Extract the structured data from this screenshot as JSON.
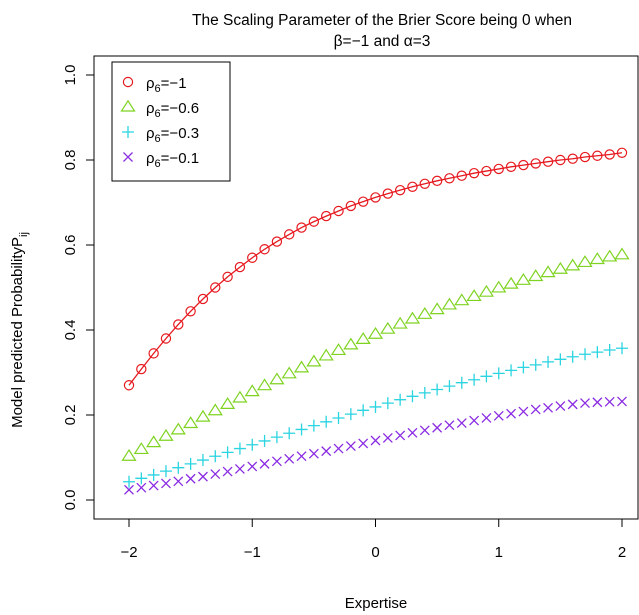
{
  "chart_data": {
    "type": "line",
    "title_line1": "The Scaling Parameter of the Brier Score being 0 when",
    "title_line2": "β=−1 and α=3",
    "xlabel": "Expertise",
    "ylabel": "Model predicted Probability",
    "ylabel_sub": "P",
    "ylabel_subscript": "ij",
    "xlim": [
      -2,
      2
    ],
    "ylim": [
      0,
      1
    ],
    "x_ticks": [
      -2,
      -1,
      0,
      1,
      2
    ],
    "x_tick_labels": [
      "−2",
      "−1",
      "0",
      "1",
      "2"
    ],
    "y_ticks": [
      0,
      0.2,
      0.4,
      0.6,
      0.8,
      1.0
    ],
    "y_tick_labels": [
      "0.0",
      "0.2",
      "0.4",
      "0.6",
      "0.8",
      "1.0"
    ],
    "legend_position": "top-left",
    "x": [
      -2.0,
      -1.9,
      -1.8,
      -1.7,
      -1.6,
      -1.5,
      -1.4,
      -1.3,
      -1.2,
      -1.1,
      -1.0,
      -0.9,
      -0.8,
      -0.7,
      -0.6,
      -0.5,
      -0.4,
      -0.3,
      -0.2,
      -0.1,
      0.0,
      0.1,
      0.2,
      0.3,
      0.4,
      0.5,
      0.6,
      0.7,
      0.8,
      0.9,
      1.0,
      1.1,
      1.2,
      1.3,
      1.4,
      1.5,
      1.6,
      1.7,
      1.8,
      1.9,
      2.0
    ],
    "series": [
      {
        "name": "ρ6=−1",
        "legend_base": "ρ",
        "legend_sub": "6",
        "legend_value": "=−1",
        "color": "#e6191f",
        "marker": "circle",
        "line": true,
        "values": [
          0.27,
          0.308,
          0.345,
          0.38,
          0.413,
          0.444,
          0.473,
          0.5,
          0.525,
          0.548,
          0.57,
          0.59,
          0.608,
          0.625,
          0.641,
          0.655,
          0.668,
          0.68,
          0.692,
          0.702,
          0.712,
          0.721,
          0.729,
          0.737,
          0.744,
          0.751,
          0.757,
          0.763,
          0.769,
          0.774,
          0.779,
          0.784,
          0.788,
          0.792,
          0.796,
          0.8,
          0.803,
          0.807,
          0.81,
          0.813,
          0.817
        ]
      },
      {
        "name": "ρ6=−0.6",
        "legend_base": "ρ",
        "legend_sub": "6",
        "legend_value": "=−0.6",
        "color": "#7ed321",
        "marker": "triangle",
        "line": false,
        "values": [
          0.103,
          0.119,
          0.135,
          0.15,
          0.165,
          0.18,
          0.195,
          0.21,
          0.225,
          0.24,
          0.255,
          0.269,
          0.283,
          0.297,
          0.311,
          0.325,
          0.339,
          0.352,
          0.365,
          0.378,
          0.39,
          0.402,
          0.414,
          0.426,
          0.437,
          0.448,
          0.459,
          0.469,
          0.479,
          0.489,
          0.499,
          0.508,
          0.517,
          0.526,
          0.535,
          0.543,
          0.551,
          0.559,
          0.566,
          0.572,
          0.577
        ]
      },
      {
        "name": "ρ6=−0.3",
        "legend_base": "ρ",
        "legend_sub": "6",
        "legend_value": "=−0.3",
        "color": "#2ad4e0",
        "marker": "plus",
        "line": false,
        "values": [
          0.043,
          0.051,
          0.059,
          0.068,
          0.076,
          0.085,
          0.094,
          0.103,
          0.112,
          0.121,
          0.13,
          0.139,
          0.148,
          0.157,
          0.166,
          0.175,
          0.184,
          0.193,
          0.202,
          0.211,
          0.219,
          0.228,
          0.236,
          0.244,
          0.252,
          0.26,
          0.268,
          0.276,
          0.283,
          0.291,
          0.298,
          0.305,
          0.312,
          0.318,
          0.325,
          0.331,
          0.337,
          0.343,
          0.348,
          0.353,
          0.357
        ]
      },
      {
        "name": "ρ6=−0.1",
        "legend_base": "ρ",
        "legend_sub": "6",
        "legend_value": "=−0.1",
        "color": "#8a2be2",
        "marker": "cross",
        "line": false,
        "values": [
          0.024,
          0.029,
          0.034,
          0.039,
          0.044,
          0.05,
          0.055,
          0.061,
          0.067,
          0.073,
          0.079,
          0.085,
          0.091,
          0.097,
          0.103,
          0.109,
          0.115,
          0.121,
          0.127,
          0.133,
          0.14,
          0.146,
          0.152,
          0.158,
          0.164,
          0.17,
          0.176,
          0.181,
          0.187,
          0.193,
          0.198,
          0.203,
          0.208,
          0.213,
          0.217,
          0.221,
          0.225,
          0.228,
          0.23,
          0.231,
          0.232
        ]
      }
    ]
  }
}
